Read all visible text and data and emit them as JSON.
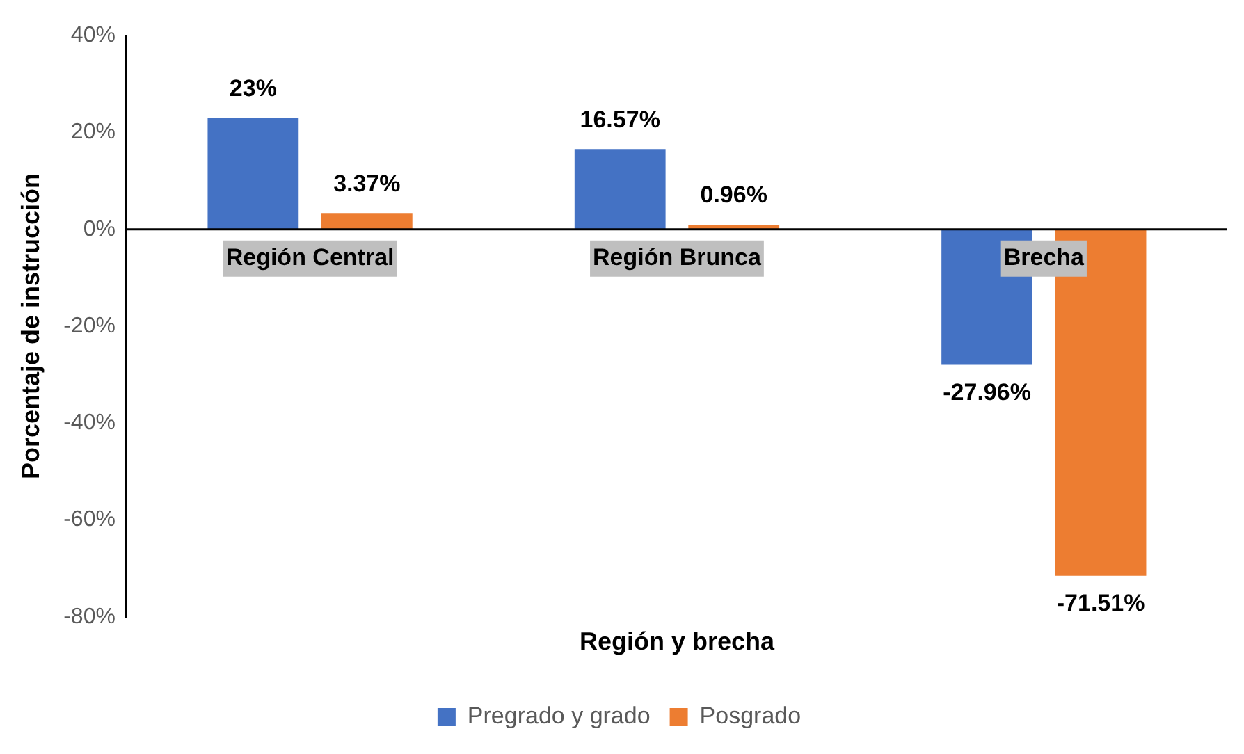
{
  "chart_data": {
    "type": "bar",
    "xlabel": "Región y brecha",
    "ylabel": "Porcentaje de instrucción",
    "categories": [
      "Región Central",
      "Región Brunca",
      "Brecha"
    ],
    "series": [
      {
        "name": "Pregrado y grado",
        "color": "#4472c4",
        "values": [
          23,
          16.57,
          -27.96
        ],
        "value_labels": [
          "23%",
          "16.57%",
          "-27.96%"
        ]
      },
      {
        "name": "Posgrado",
        "color": "#ed7d31",
        "values": [
          3.37,
          0.96,
          -71.51
        ],
        "value_labels": [
          "3.37%",
          "0.96%",
          "-71.51%"
        ]
      }
    ],
    "ylim": [
      -80,
      40
    ],
    "yticks": [
      {
        "value": -80,
        "label": "-80%"
      },
      {
        "value": -60,
        "label": "-60%"
      },
      {
        "value": -40,
        "label": "-40%"
      },
      {
        "value": -20,
        "label": "-20%"
      },
      {
        "value": 0,
        "label": "0%"
      },
      {
        "value": 20,
        "label": "20%"
      },
      {
        "value": 40,
        "label": "40%"
      }
    ],
    "legend": "bottom"
  }
}
